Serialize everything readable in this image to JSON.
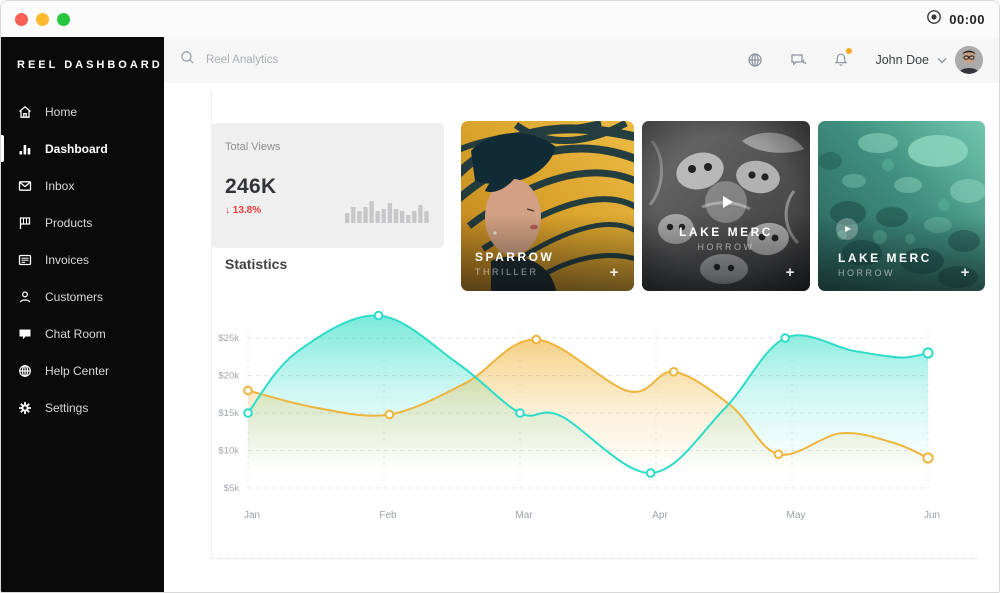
{
  "window": {
    "timer": "00:00"
  },
  "sidebar": {
    "brand": "REEL DASHBOARD",
    "items": [
      {
        "label": "Home",
        "icon": "home-icon",
        "active": false
      },
      {
        "label": "Dashboard",
        "icon": "dashboard-icon",
        "active": true
      },
      {
        "label": "Inbox",
        "icon": "inbox-icon",
        "active": false
      },
      {
        "label": "Products",
        "icon": "products-icon",
        "active": false
      },
      {
        "label": "Invoices",
        "icon": "invoices-icon",
        "active": false
      },
      {
        "label": "Customers",
        "icon": "customers-icon",
        "active": false
      },
      {
        "label": "Chat Room",
        "icon": "chat-room-icon",
        "active": false
      },
      {
        "label": "Help Center",
        "icon": "help-center-icon",
        "active": false
      },
      {
        "label": "Settings",
        "icon": "settings-icon",
        "active": false
      }
    ]
  },
  "header": {
    "search_placeholder": "Reel Analytics",
    "icons": [
      "globe-icon",
      "chat-icon",
      "bell-icon"
    ],
    "bell_has_badge": true,
    "user_name": "John Doe"
  },
  "stats_card": {
    "title": "Total Views",
    "value": "246K",
    "change": "13.8%",
    "change_direction": "down",
    "spark_values": [
      10,
      16,
      12,
      16,
      22,
      12,
      14,
      20,
      14,
      12,
      8,
      12,
      18,
      12
    ]
  },
  "section_title": "Statistics",
  "media_cards": [
    {
      "title": "SPARROW",
      "subtitle": "THRILLER",
      "add_label": "+",
      "has_play": false
    },
    {
      "title": "LAKE MERC",
      "subtitle": "HORROW",
      "add_label": "+",
      "has_play": true
    },
    {
      "title": "LAKE MERC",
      "subtitle": "HORROW",
      "add_label": "+",
      "has_play": true
    }
  ],
  "chart_data": {
    "type": "area",
    "title": "Statistics",
    "categories": [
      "Jan",
      "Feb",
      "Mar",
      "Apr",
      "May",
      "Jun"
    ],
    "yticks": [
      {
        "v": 25,
        "label": "$25k"
      },
      {
        "v": 20,
        "label": "$20k"
      },
      {
        "v": 15,
        "label": "$15k"
      },
      {
        "v": 10,
        "label": "$10k"
      },
      {
        "v": 5,
        "label": "$5k"
      }
    ],
    "ymin": 5000,
    "ymax": 30000,
    "grid": "dashed",
    "legend": "none",
    "series": [
      {
        "name": "series-teal",
        "color": "#2bdcc6",
        "values": [
          15000,
          28000,
          15000,
          7000,
          25000,
          23000
        ],
        "points": [
          [
            0,
            15,
            1
          ],
          [
            0.35,
            23,
            0
          ],
          [
            0.96,
            28,
            1
          ],
          [
            1.55,
            21.5,
            0
          ],
          [
            2.0,
            15,
            1
          ],
          [
            2.3,
            14.6,
            0
          ],
          [
            2.96,
            7,
            1
          ],
          [
            3.5,
            15.5,
            0
          ],
          [
            3.95,
            25,
            1
          ],
          [
            4.45,
            23.3,
            0
          ],
          [
            4.8,
            22.4,
            0
          ],
          [
            5,
            23,
            1
          ]
        ]
      },
      {
        "name": "series-amber",
        "color": "#efb43c",
        "values": [
          18000,
          14800,
          24800,
          20500,
          9500,
          9000
        ],
        "points": [
          [
            0,
            18,
            1
          ],
          [
            0.5,
            15.7,
            0
          ],
          [
            1.04,
            14.8,
            1
          ],
          [
            1.6,
            19,
            0
          ],
          [
            2.12,
            24.8,
            1
          ],
          [
            2.8,
            17.9,
            0
          ],
          [
            3.13,
            20.5,
            1
          ],
          [
            3.55,
            16,
            0
          ],
          [
            3.9,
            9.5,
            1
          ],
          [
            4.36,
            12.3,
            0
          ],
          [
            4.75,
            11,
            0
          ],
          [
            5,
            9,
            1
          ]
        ]
      }
    ]
  },
  "colors": {
    "sidebar_bg": "#0a0a0a",
    "accent_teal": "#2bdcc6",
    "accent_amber": "#efb43c",
    "negative_red": "#ee3b3b",
    "badge_orange": "#f5a623",
    "card_gold": "#d9a22b",
    "traffic_red": "#f85f57",
    "traffic_yellow": "#fcbb2e",
    "traffic_green": "#27c63f"
  }
}
